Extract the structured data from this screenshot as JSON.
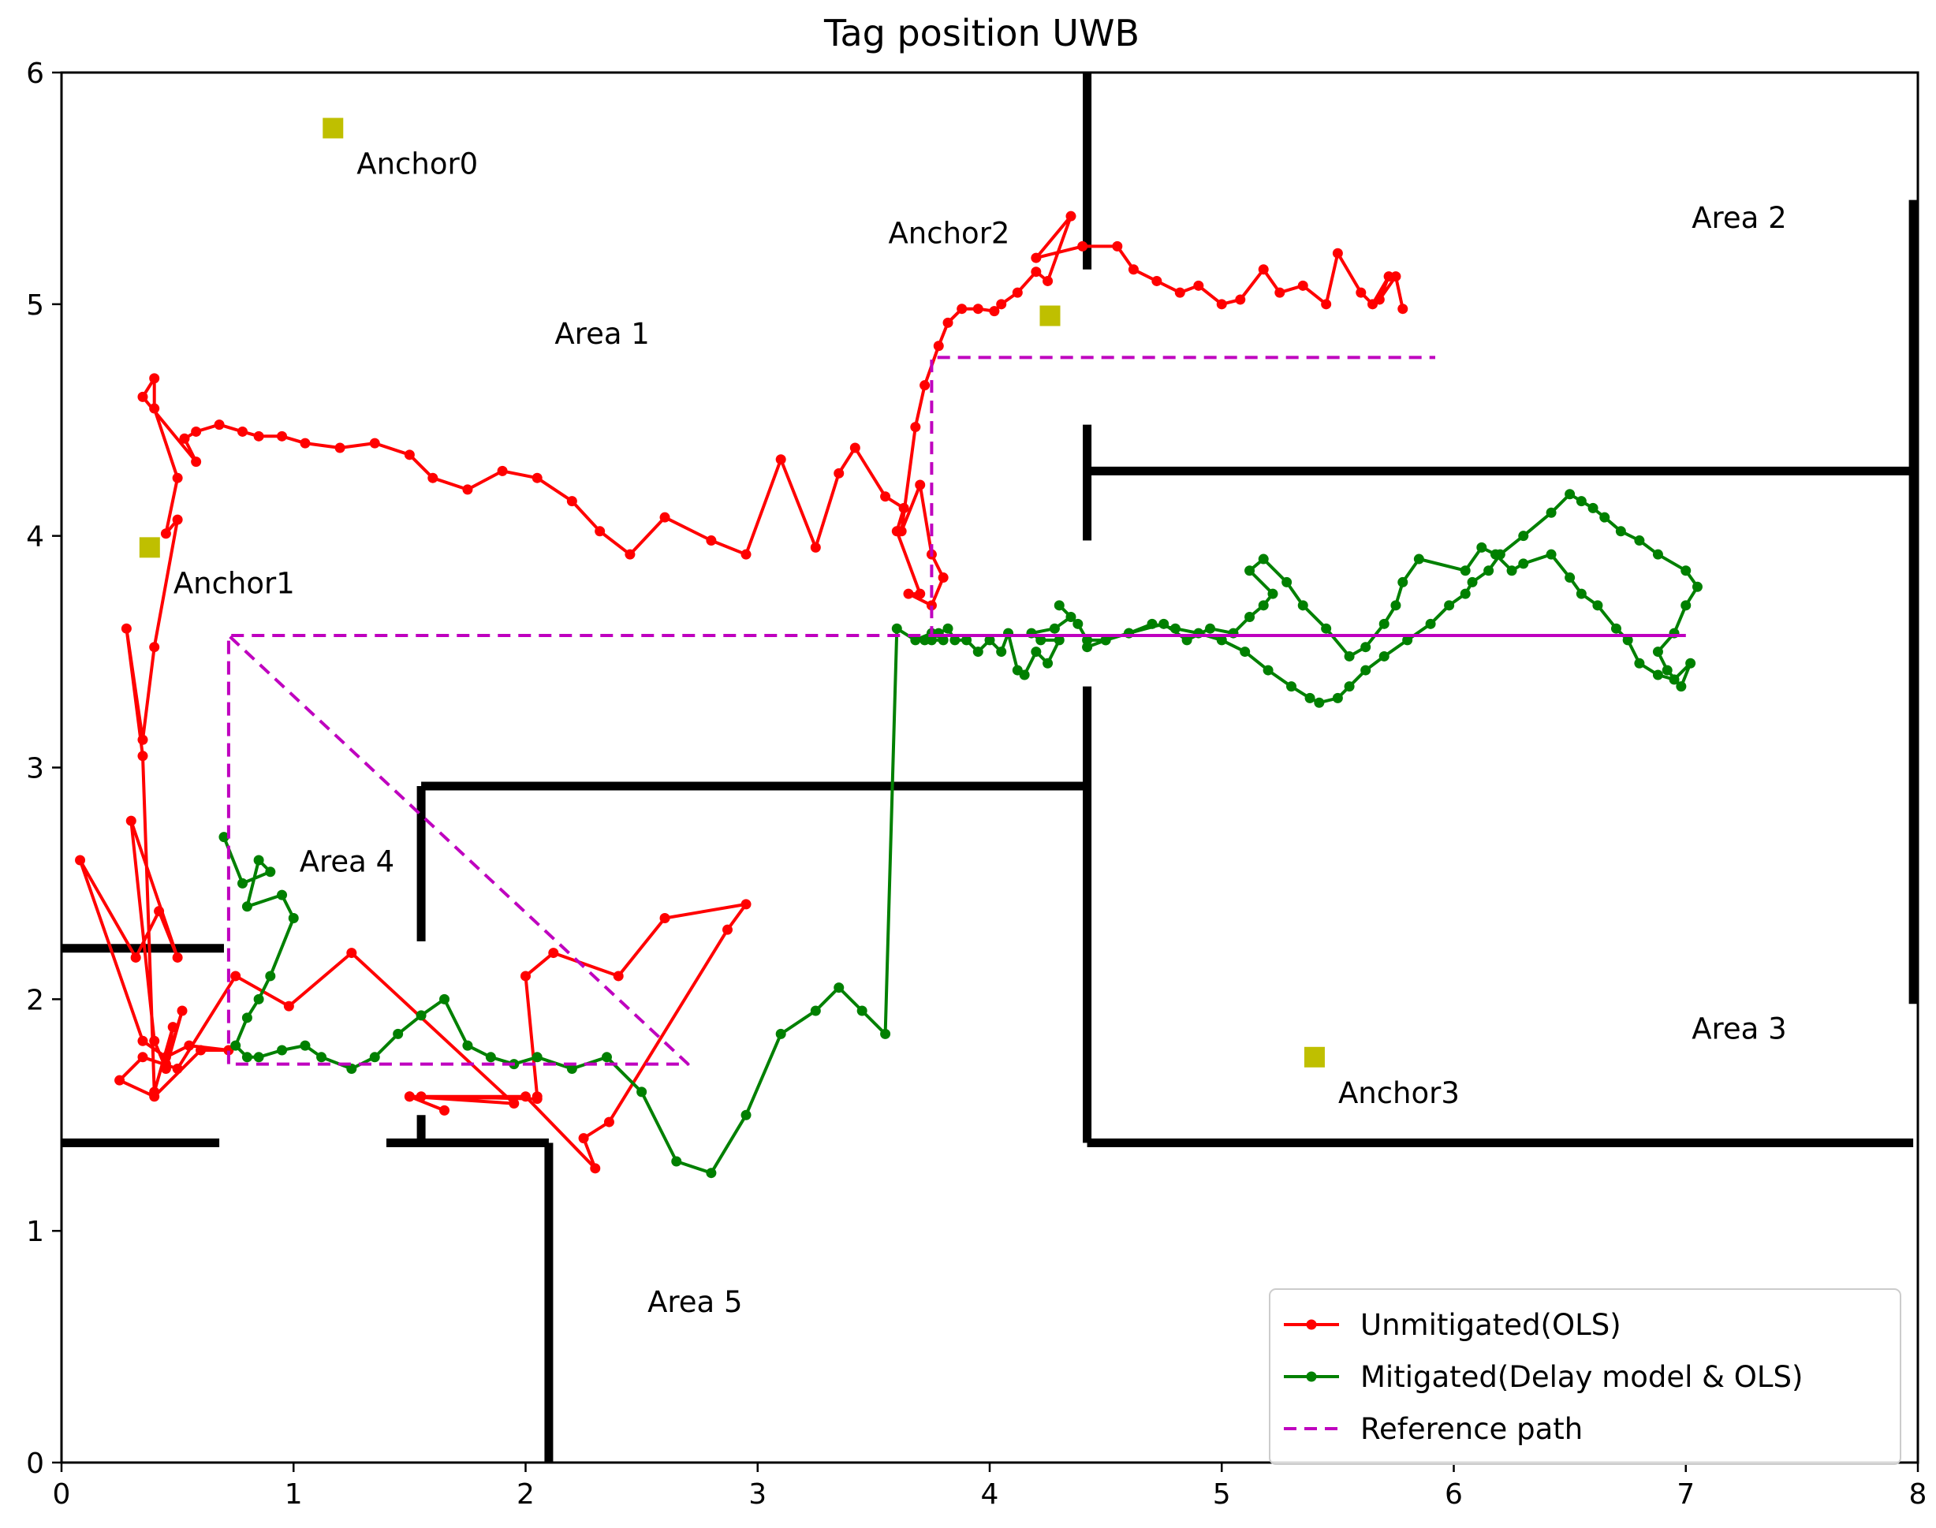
{
  "chart_data": {
    "type": "line",
    "title": "Tag position UWB",
    "xlabel": "",
    "ylabel": "",
    "xlim": [
      0,
      8
    ],
    "ylim": [
      0,
      6
    ],
    "xticks": [
      0,
      1,
      2,
      3,
      4,
      5,
      6,
      7,
      8
    ],
    "yticks": [
      0,
      1,
      2,
      3,
      4,
      5,
      6
    ],
    "grid": false,
    "legend_position": "lower-right",
    "walls": [
      [
        [
          0,
          2.22
        ],
        [
          0.7,
          2.22
        ]
      ],
      [
        [
          0,
          1.38
        ],
        [
          0.68,
          1.38
        ]
      ],
      [
        [
          1.4,
          1.38
        ],
        [
          2.1,
          1.38
        ]
      ],
      [
        [
          2.1,
          1.38
        ],
        [
          2.1,
          0
        ]
      ],
      [
        [
          1.55,
          1.38
        ],
        [
          1.55,
          1.5
        ]
      ],
      [
        [
          1.55,
          2.25
        ],
        [
          1.55,
          2.92
        ]
      ],
      [
        [
          1.55,
          2.92
        ],
        [
          4.42,
          2.92
        ]
      ],
      [
        [
          4.42,
          1.38
        ],
        [
          4.42,
          3.35
        ]
      ],
      [
        [
          4.42,
          3.98
        ],
        [
          4.42,
          4.48
        ]
      ],
      [
        [
          4.42,
          4.28
        ],
        [
          7.98,
          4.28
        ]
      ],
      [
        [
          4.42,
          5.15
        ],
        [
          4.42,
          6
        ]
      ],
      [
        [
          4.42,
          1.38
        ],
        [
          7.98,
          1.38
        ]
      ],
      [
        [
          7.98,
          1.98
        ],
        [
          7.98,
          5.45
        ]
      ]
    ],
    "anchors": [
      {
        "label": "Anchor0",
        "x": 1.17,
        "y": 5.76
      },
      {
        "label": "Anchor1",
        "x": 0.38,
        "y": 3.95
      },
      {
        "label": "Anchor2",
        "x": 4.26,
        "y": 4.95
      },
      {
        "label": "Anchor3",
        "x": 5.4,
        "y": 1.75
      }
    ],
    "area_labels": [
      {
        "text": "Area 1",
        "x": 2.33,
        "y": 4.83
      },
      {
        "text": "Area 2",
        "x": 7.23,
        "y": 5.33
      },
      {
        "text": "Area 3",
        "x": 7.23,
        "y": 1.83
      },
      {
        "text": "Area 4",
        "x": 1.23,
        "y": 2.55
      },
      {
        "text": "Area 5",
        "x": 2.73,
        "y": 0.65
      }
    ],
    "series": [
      {
        "name": "Unmitigated(OLS)",
        "color": "#ff0000",
        "style": "solid-dots",
        "x": [
          1.65,
          1.5,
          1.55,
          2.05,
          2.05,
          2.0,
          2.12,
          2.4,
          2.6,
          2.95,
          2.87,
          2.36,
          2.25,
          2.3,
          2.0,
          1.5,
          1.95,
          1.25,
          0.98,
          0.75,
          0.5,
          0.35,
          0.25,
          0.4,
          0.6,
          0.72,
          0.55,
          0.45,
          0.35,
          0.08,
          0.32,
          0.42,
          0.5,
          0.3,
          0.4,
          0.45,
          0.52,
          0.45,
          0.48,
          0.4,
          0.35,
          0.28,
          0.35,
          0.4,
          0.5,
          0.45,
          0.5,
          0.4,
          0.4,
          0.35,
          0.58,
          0.53,
          0.58,
          0.68,
          0.78,
          0.85,
          0.95,
          1.05,
          1.2,
          1.35,
          1.5,
          1.6,
          1.75,
          1.9,
          2.05,
          2.2,
          2.32,
          2.45,
          2.6,
          2.8,
          2.95,
          3.1,
          3.25,
          3.35,
          3.42,
          3.55,
          3.63,
          3.6,
          3.7,
          3.65,
          3.75,
          3.8,
          3.75,
          3.7,
          3.62,
          3.68,
          3.72,
          3.78,
          3.82,
          3.88,
          3.95,
          4.02,
          4.05,
          4.12,
          4.2,
          4.25,
          4.35,
          4.2,
          4.4,
          4.55,
          4.62,
          4.72,
          4.82,
          4.9,
          5.0,
          5.08,
          5.18,
          5.25,
          5.35,
          5.45,
          5.5,
          5.6,
          5.65,
          5.72,
          5.68,
          5.75,
          5.78
        ],
        "y": [
          1.52,
          1.58,
          1.58,
          1.57,
          1.58,
          2.1,
          2.2,
          2.1,
          2.35,
          2.41,
          2.3,
          1.47,
          1.4,
          1.27,
          1.58,
          1.58,
          1.55,
          2.2,
          1.97,
          2.1,
          1.7,
          1.75,
          1.65,
          1.58,
          1.78,
          1.78,
          1.8,
          1.75,
          1.82,
          2.6,
          2.18,
          2.38,
          2.18,
          2.77,
          1.82,
          1.7,
          1.95,
          1.72,
          1.88,
          1.6,
          3.05,
          3.6,
          3.12,
          3.52,
          4.07,
          4.01,
          4.25,
          4.55,
          4.68,
          4.6,
          4.32,
          4.42,
          4.45,
          4.48,
          4.45,
          4.43,
          4.43,
          4.4,
          4.38,
          4.4,
          4.35,
          4.25,
          4.2,
          4.28,
          4.25,
          4.15,
          4.02,
          3.92,
          4.08,
          3.98,
          3.92,
          4.33,
          3.95,
          4.27,
          4.38,
          4.17,
          4.12,
          4.02,
          3.75,
          3.75,
          3.7,
          3.82,
          3.92,
          4.22,
          4.02,
          4.47,
          4.65,
          4.82,
          4.92,
          4.98,
          4.98,
          4.97,
          5.0,
          5.05,
          5.14,
          5.1,
          5.38,
          5.2,
          5.25,
          5.25,
          5.15,
          5.1,
          5.05,
          5.08,
          5.0,
          5.02,
          5.15,
          5.05,
          5.08,
          5.0,
          5.22,
          5.05,
          5.0,
          5.12,
          5.02,
          5.12,
          4.98
        ]
      },
      {
        "name": "Mitigated(Delay model & OLS)",
        "color": "#008000",
        "style": "solid-dots",
        "x": [
          0.7,
          0.78,
          0.9,
          0.85,
          0.8,
          0.95,
          1.0,
          0.9,
          0.85,
          0.8,
          0.75,
          0.8,
          0.85,
          0.95,
          1.05,
          1.12,
          1.25,
          1.35,
          1.45,
          1.55,
          1.65,
          1.75,
          1.85,
          1.95,
          2.05,
          2.2,
          2.35,
          2.5,
          2.65,
          2.8,
          2.95,
          3.1,
          3.25,
          3.35,
          3.45,
          3.55,
          3.6,
          3.68,
          3.75,
          3.72,
          3.75,
          3.8,
          3.78,
          3.82,
          3.85,
          3.9,
          3.95,
          4.0,
          4.05,
          4.08,
          4.12,
          4.15,
          4.2,
          4.25,
          4.3,
          4.22,
          4.18,
          4.28,
          4.35,
          4.3,
          4.38,
          4.42,
          4.5,
          4.6,
          4.75,
          4.85,
          4.95,
          5.05,
          5.12,
          5.18,
          5.22,
          5.12,
          5.18,
          5.28,
          5.35,
          5.45,
          5.55,
          5.62,
          5.7,
          5.75,
          5.78,
          5.85,
          6.05,
          6.12,
          6.18,
          6.25,
          6.3,
          6.42,
          6.5,
          6.55,
          6.62,
          6.7,
          6.75,
          6.8,
          6.88,
          6.95,
          7.02,
          6.98,
          6.92,
          6.88,
          6.95,
          7.0,
          7.05,
          7.0,
          6.88,
          6.8,
          6.72,
          6.65,
          6.6,
          6.55,
          6.5,
          6.42,
          6.3,
          6.2,
          6.15,
          6.08,
          6.05,
          5.98,
          5.9,
          5.8,
          5.7,
          5.62,
          5.55,
          5.5,
          5.42,
          5.38,
          5.3,
          5.2,
          5.1,
          5.0,
          4.9,
          4.8,
          4.7,
          4.6,
          4.5,
          4.42
        ],
        "y": [
          2.7,
          2.5,
          2.55,
          2.6,
          2.4,
          2.45,
          2.35,
          2.1,
          2.0,
          1.92,
          1.8,
          1.75,
          1.75,
          1.78,
          1.8,
          1.75,
          1.7,
          1.75,
          1.85,
          1.93,
          2.0,
          1.8,
          1.75,
          1.72,
          1.75,
          1.7,
          1.75,
          1.6,
          1.3,
          1.25,
          1.5,
          1.85,
          1.95,
          2.05,
          1.95,
          1.85,
          3.6,
          3.55,
          3.58,
          3.55,
          3.55,
          3.55,
          3.58,
          3.6,
          3.55,
          3.55,
          3.5,
          3.55,
          3.5,
          3.58,
          3.42,
          3.4,
          3.5,
          3.45,
          3.55,
          3.55,
          3.58,
          3.6,
          3.65,
          3.7,
          3.62,
          3.55,
          3.55,
          3.58,
          3.62,
          3.55,
          3.6,
          3.58,
          3.65,
          3.7,
          3.75,
          3.85,
          3.9,
          3.8,
          3.7,
          3.6,
          3.48,
          3.52,
          3.62,
          3.7,
          3.8,
          3.9,
          3.85,
          3.95,
          3.92,
          3.85,
          3.88,
          3.92,
          3.82,
          3.75,
          3.7,
          3.6,
          3.55,
          3.45,
          3.4,
          3.38,
          3.45,
          3.35,
          3.42,
          3.5,
          3.58,
          3.7,
          3.78,
          3.85,
          3.92,
          3.98,
          4.02,
          4.08,
          4.12,
          4.15,
          4.18,
          4.1,
          4.0,
          3.92,
          3.85,
          3.8,
          3.75,
          3.7,
          3.62,
          3.55,
          3.48,
          3.42,
          3.35,
          3.3,
          3.28,
          3.3,
          3.35,
          3.42,
          3.5,
          3.55,
          3.58,
          3.6,
          3.62,
          3.58,
          3.55,
          3.52
        ]
      },
      {
        "name": "Reference path",
        "color": "#bf00bf",
        "style": "dashed",
        "x": [
          0.72,
          0.72,
          2.7,
          0.72,
          0.72,
          3.75,
          3.75,
          5.92
        ],
        "y": [
          1.72,
          3.57,
          1.72,
          1.72,
          3.57,
          3.57,
          4.77,
          4.77
        ]
      },
      {
        "name": "",
        "color": "#bf00bf",
        "style": "solid",
        "x": [
          3.75,
          7.0
        ],
        "y": [
          3.57,
          3.57
        ]
      }
    ]
  }
}
